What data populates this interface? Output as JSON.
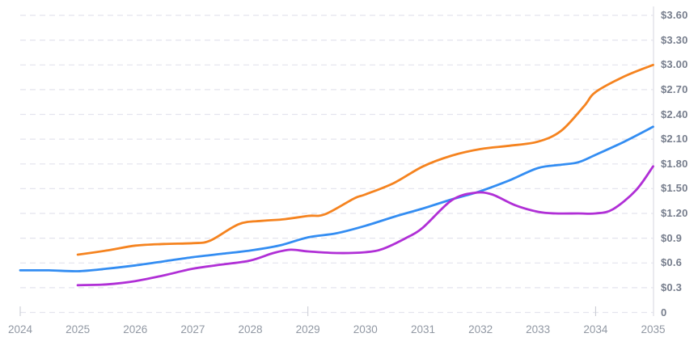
{
  "chart_data": {
    "type": "line",
    "title": "",
    "xlabel": "",
    "ylabel": "",
    "xlim": [
      2024,
      2035
    ],
    "ylim": [
      0,
      3.6
    ],
    "grid": "horizontal-dashed",
    "legend_position": "none",
    "y_ticks": [
      {
        "label": "$3.60",
        "value": 3.6
      },
      {
        "label": "$3.30",
        "value": 3.3
      },
      {
        "label": "$3.00",
        "value": 3.0
      },
      {
        "label": "$2.70",
        "value": 2.7
      },
      {
        "label": "$2.40",
        "value": 2.4
      },
      {
        "label": "$2.10",
        "value": 2.1
      },
      {
        "label": "$1.80",
        "value": 1.8
      },
      {
        "label": "$1.50",
        "value": 1.5
      },
      {
        "label": "$1.20",
        "value": 1.2
      },
      {
        "label": "$0.9",
        "value": 0.9
      },
      {
        "label": "$0.6",
        "value": 0.6
      },
      {
        "label": "$0.3",
        "value": 0.3
      },
      {
        "label": "0",
        "value": 0
      }
    ],
    "x_ticks": [
      {
        "label": "2024",
        "value": 2024
      },
      {
        "label": "2025",
        "value": 2025
      },
      {
        "label": "2026",
        "value": 2026
      },
      {
        "label": "2027",
        "value": 2027
      },
      {
        "label": "2028",
        "value": 2028
      },
      {
        "label": "2029",
        "value": 2029
      },
      {
        "label": "2030",
        "value": 2030
      },
      {
        "label": "2031",
        "value": 2031
      },
      {
        "label": "2032",
        "value": 2032
      },
      {
        "label": "2033",
        "value": 2033
      },
      {
        "label": "2034",
        "value": 2034
      },
      {
        "label": "2035",
        "value": 2035
      }
    ],
    "x_tick_marks": [
      2024,
      2029,
      2034
    ],
    "series": [
      {
        "name": "orange-line",
        "color": "#f5831f",
        "points": [
          [
            2025,
            0.7
          ],
          [
            2025.5,
            0.75
          ],
          [
            2026,
            0.81
          ],
          [
            2026.5,
            0.83
          ],
          [
            2027,
            0.84
          ],
          [
            2027.3,
            0.87
          ],
          [
            2027.8,
            1.07
          ],
          [
            2028.2,
            1.11
          ],
          [
            2028.6,
            1.13
          ],
          [
            2029,
            1.17
          ],
          [
            2029.3,
            1.19
          ],
          [
            2029.8,
            1.38
          ],
          [
            2030,
            1.43
          ],
          [
            2030.5,
            1.57
          ],
          [
            2031,
            1.77
          ],
          [
            2031.5,
            1.9
          ],
          [
            2032,
            1.98
          ],
          [
            2032.5,
            2.02
          ],
          [
            2033,
            2.07
          ],
          [
            2033.4,
            2.2
          ],
          [
            2033.8,
            2.5
          ],
          [
            2034,
            2.67
          ],
          [
            2034.5,
            2.86
          ],
          [
            2035,
            3.0
          ]
        ]
      },
      {
        "name": "blue-line",
        "color": "#338df2",
        "points": [
          [
            2024,
            0.51
          ],
          [
            2024.5,
            0.51
          ],
          [
            2025,
            0.5
          ],
          [
            2025.5,
            0.53
          ],
          [
            2026,
            0.57
          ],
          [
            2026.5,
            0.62
          ],
          [
            2027,
            0.67
          ],
          [
            2027.5,
            0.71
          ],
          [
            2028,
            0.75
          ],
          [
            2028.5,
            0.81
          ],
          [
            2029,
            0.91
          ],
          [
            2029.5,
            0.96
          ],
          [
            2030,
            1.05
          ],
          [
            2030.5,
            1.16
          ],
          [
            2031,
            1.26
          ],
          [
            2031.5,
            1.37
          ],
          [
            2032,
            1.47
          ],
          [
            2032.5,
            1.6
          ],
          [
            2033,
            1.75
          ],
          [
            2033.4,
            1.79
          ],
          [
            2033.7,
            1.82
          ],
          [
            2034,
            1.91
          ],
          [
            2034.5,
            2.07
          ],
          [
            2035,
            2.25
          ]
        ]
      },
      {
        "name": "purple-line",
        "color": "#b02fd6",
        "points": [
          [
            2025,
            0.33
          ],
          [
            2025.5,
            0.34
          ],
          [
            2026,
            0.38
          ],
          [
            2026.5,
            0.45
          ],
          [
            2027,
            0.53
          ],
          [
            2027.5,
            0.58
          ],
          [
            2028,
            0.63
          ],
          [
            2028.4,
            0.72
          ],
          [
            2028.7,
            0.76
          ],
          [
            2029,
            0.74
          ],
          [
            2029.5,
            0.72
          ],
          [
            2030,
            0.73
          ],
          [
            2030.3,
            0.77
          ],
          [
            2030.7,
            0.9
          ],
          [
            2031,
            1.03
          ],
          [
            2031.5,
            1.36
          ],
          [
            2031.9,
            1.45
          ],
          [
            2032.2,
            1.43
          ],
          [
            2032.6,
            1.3
          ],
          [
            2033,
            1.22
          ],
          [
            2033.3,
            1.2
          ],
          [
            2033.7,
            1.2
          ],
          [
            2034,
            1.2
          ],
          [
            2034.3,
            1.25
          ],
          [
            2034.7,
            1.48
          ],
          [
            2035,
            1.77
          ]
        ]
      }
    ],
    "colors": {
      "gridline": "#e4e4ee",
      "axis_line": "#e3e3ea",
      "tick_mark": "#c6c9d1",
      "y_label_text": "#767d8c",
      "x_label_text": "#9198a3",
      "background": "#ffffff"
    }
  }
}
